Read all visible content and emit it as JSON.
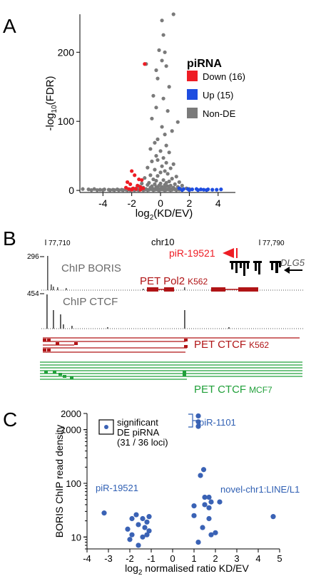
{
  "panels": {
    "A": {
      "letter": "A"
    },
    "B": {
      "letter": "B"
    },
    "C": {
      "letter": "C"
    }
  },
  "chart_data": [
    {
      "type": "scatter",
      "panel": "A",
      "title": "",
      "xlabel_main": "log",
      "xlabel_sub": "2",
      "xlabel_rest": "(KD/EV)",
      "ylabel_prefix": "-log",
      "ylabel_sub": "10",
      "ylabel_rest": "(FDR)",
      "xlim": [
        -5.6,
        5.2
      ],
      "ylim": [
        -3,
        255
      ],
      "xticks": [
        -4,
        -2,
        0,
        2,
        4
      ],
      "yticks": [
        0,
        100,
        200
      ],
      "legend": {
        "title": "piRNA",
        "placement": "top-right",
        "entries": [
          {
            "label": "Down (16)",
            "color": "#ee1c24"
          },
          {
            "label": "Up (15)",
            "color": "#1e4de0"
          },
          {
            "label": "Non-DE",
            "color": "#7a7a7a"
          }
        ]
      },
      "series": [
        {
          "color": "#7a7a7a",
          "points": [
            [
              0.9,
              255
            ],
            [
              0.1,
              246
            ],
            [
              0.2,
              225
            ],
            [
              -0.1,
              203
            ],
            [
              0.3,
              200
            ],
            [
              0.1,
              188
            ],
            [
              -1.0,
              183
            ],
            [
              0.4,
              180
            ],
            [
              -0.3,
              174
            ],
            [
              -0.2,
              162
            ],
            [
              0.6,
              150
            ],
            [
              -0.5,
              137
            ],
            [
              0.2,
              133
            ],
            [
              -0.3,
              120
            ],
            [
              0.5,
              115
            ],
            [
              -0.6,
              104
            ],
            [
              1.2,
              99
            ],
            [
              0.1,
              92
            ],
            [
              0.8,
              86
            ],
            [
              0.3,
              81
            ],
            [
              -0.2,
              74
            ],
            [
              -0.4,
              69
            ],
            [
              0.4,
              65
            ],
            [
              -0.7,
              60
            ],
            [
              0.0,
              57
            ],
            [
              0.6,
              55
            ],
            [
              -0.3,
              50
            ],
            [
              0.2,
              47
            ],
            [
              -0.2,
              44
            ],
            [
              -0.6,
              42
            ],
            [
              0.4,
              40
            ],
            [
              0.9,
              38
            ],
            [
              0.1,
              35
            ],
            [
              -0.9,
              33
            ],
            [
              0.7,
              32
            ],
            [
              -0.4,
              30
            ],
            [
              0.3,
              28
            ],
            [
              0.0,
              26
            ],
            [
              0.5,
              24
            ],
            [
              -0.7,
              22
            ],
            [
              -0.2,
              21
            ],
            [
              1.1,
              20
            ],
            [
              -1.1,
              18
            ],
            [
              0.8,
              17
            ],
            [
              -0.5,
              16
            ],
            [
              0.2,
              15
            ],
            [
              -0.3,
              14
            ],
            [
              0.6,
              13
            ],
            [
              1.3,
              12
            ],
            [
              -0.8,
              11
            ],
            [
              0.4,
              11
            ],
            [
              0.0,
              10
            ],
            [
              -1.3,
              10
            ],
            [
              1.0,
              9
            ],
            [
              -0.4,
              9
            ],
            [
              0.3,
              8
            ],
            [
              -0.9,
              8
            ],
            [
              0.7,
              7
            ],
            [
              1.5,
              7
            ],
            [
              -0.1,
              7
            ],
            [
              -0.6,
              6
            ],
            [
              0.5,
              6
            ],
            [
              -1.5,
              6
            ],
            [
              1.2,
              5
            ],
            [
              0.1,
              5
            ],
            [
              -0.3,
              5
            ],
            [
              0.9,
              4
            ],
            [
              -1.2,
              4
            ],
            [
              -0.7,
              4
            ],
            [
              0.3,
              4
            ],
            [
              1.8,
              3
            ],
            [
              -1.7,
              3
            ],
            [
              0.6,
              3
            ],
            [
              -0.2,
              3
            ],
            [
              1.4,
              2
            ],
            [
              -1.0,
              2
            ],
            [
              0.0,
              2
            ],
            [
              2.0,
              2
            ],
            [
              -2.0,
              2
            ],
            [
              0.8,
              2
            ],
            [
              -0.5,
              2
            ],
            [
              -5.4,
              2
            ],
            [
              -5.0,
              1.5
            ],
            [
              -4.6,
              2
            ],
            [
              -4.2,
              1
            ],
            [
              -3.9,
              1.5
            ],
            [
              -3.6,
              1
            ],
            [
              -3.3,
              1
            ],
            [
              -3.0,
              1.5
            ],
            [
              -2.7,
              1
            ],
            [
              -2.4,
              1
            ],
            [
              -2.2,
              1.5
            ],
            [
              -1.9,
              1
            ],
            [
              -1.6,
              1
            ],
            [
              -1.4,
              1.5
            ],
            [
              -1.1,
              1
            ],
            [
              -0.8,
              1
            ],
            [
              -0.6,
              1.5
            ],
            [
              -0.4,
              1
            ],
            [
              -0.2,
              1
            ],
            [
              0.0,
              1
            ],
            [
              0.2,
              1
            ],
            [
              0.4,
              1
            ],
            [
              0.6,
              1
            ],
            [
              0.8,
              1
            ],
            [
              1.0,
              1.5
            ],
            [
              1.3,
              1
            ],
            [
              -4.8,
              0.5
            ],
            [
              -4.4,
              0.5
            ],
            [
              -4.0,
              0.5
            ],
            [
              -3.5,
              0.5
            ],
            [
              -3.2,
              0.5
            ],
            [
              -2.9,
              0.5
            ],
            [
              -2.6,
              0.5
            ],
            [
              -2.3,
              0.5
            ],
            [
              -2.1,
              0.5
            ],
            [
              -1.8,
              0.5
            ],
            [
              -1.5,
              0.5
            ],
            [
              -1.2,
              0.5
            ],
            [
              -0.9,
              0.5
            ],
            [
              -0.5,
              0.5
            ],
            [
              -0.1,
              0.5
            ],
            [
              0.3,
              0.5
            ],
            [
              0.7,
              0.5
            ],
            [
              1.1,
              0.5
            ]
          ]
        },
        {
          "name": "Down (16)",
          "color": "#ee1c24",
          "points": [
            [
              -1.1,
              183
            ],
            [
              -2.0,
              28
            ],
            [
              -1.8,
              22
            ],
            [
              -1.5,
              16
            ],
            [
              -1.3,
              15
            ],
            [
              -2.3,
              12
            ],
            [
              -2.1,
              9
            ],
            [
              -1.6,
              7
            ],
            [
              -1.4,
              5
            ],
            [
              -2.4,
              4
            ],
            [
              -1.9,
              3
            ],
            [
              -1.2,
              3
            ],
            [
              -2.2,
              2
            ],
            [
              -1.7,
              2
            ],
            [
              -1.4,
              1
            ],
            [
              -2.0,
              1
            ]
          ]
        },
        {
          "name": "Up (15)",
          "color": "#1e4de0",
          "points": [
            [
              1.3,
              3
            ],
            [
              1.6,
              2
            ],
            [
              1.9,
              2
            ],
            [
              2.2,
              1.5
            ],
            [
              2.5,
              2
            ],
            [
              2.8,
              1.5
            ],
            [
              3.0,
              1
            ],
            [
              3.3,
              1.5
            ],
            [
              3.6,
              1
            ],
            [
              3.9,
              1
            ],
            [
              4.2,
              1.5
            ],
            [
              1.5,
              0.5
            ],
            [
              2.0,
              0.5
            ],
            [
              2.6,
              0.5
            ],
            [
              3.2,
              0.5
            ]
          ]
        }
      ]
    },
    {
      "type": "scatter",
      "panel": "C",
      "title": "",
      "xlabel_prefix": "log",
      "xlabel_sub": "2",
      "xlabel_rest": " normalised ratio KD/EV",
      "ylabel": "BORIS ChIP read density",
      "yscale": "log",
      "xlim": [
        -4,
        5
      ],
      "ylim": [
        6,
        2000
      ],
      "xticks": [
        -4,
        -3,
        -2,
        -1,
        0,
        1,
        2,
        3,
        4,
        5
      ],
      "yticks": [
        10,
        100,
        1000,
        2000
      ],
      "legend_text": [
        "significant",
        "DE piRNA",
        "(31 / 36 loci)"
      ],
      "annotations": [
        {
          "text": "piR-1101",
          "color": "#2f5fb3"
        },
        {
          "text": "piR-19521",
          "color": "#2f5fb3"
        },
        {
          "text": "novel-chr1:LINE/L1",
          "color": "#2f5fb3"
        }
      ],
      "series": [
        {
          "color": "#3a62b5",
          "points": [
            [
              -3.2,
              28
            ],
            [
              -1.9,
              22
            ],
            [
              -1.7,
              26
            ],
            [
              -1.4,
              22
            ],
            [
              -1.2,
              19
            ],
            [
              -1.1,
              24
            ],
            [
              -1.3,
              15
            ],
            [
              -1.6,
              17
            ],
            [
              -1.1,
              13
            ],
            [
              -1.9,
              11
            ],
            [
              -1.4,
              10
            ],
            [
              -2.0,
              9
            ],
            [
              -1.6,
              7
            ],
            [
              -1.2,
              11
            ],
            [
              -2.1,
              14
            ],
            [
              1.2,
              1800
            ],
            [
              1.2,
              1400
            ],
            [
              1.2,
              1150
            ],
            [
              1.45,
              180
            ],
            [
              1.3,
              140
            ],
            [
              1.5,
              55
            ],
            [
              1.7,
              55
            ],
            [
              1.5,
              40
            ],
            [
              1.8,
              45
            ],
            [
              2.2,
              45
            ],
            [
              1.0,
              38
            ],
            [
              1.7,
              35
            ],
            [
              1.0,
              25
            ],
            [
              1.7,
              22
            ],
            [
              1.4,
              15
            ],
            [
              1.2,
              8
            ],
            [
              1.8,
              11
            ],
            [
              2.0,
              12
            ],
            [
              4.7,
              24
            ]
          ]
        }
      ]
    }
  ],
  "genome_browser": {
    "chrom": "chr10",
    "coord_left": "77,710",
    "coord_right": "77,790",
    "pirna_label": "piR-19521",
    "gene_label": "DLG5",
    "track_boris_label": "ChIP BORIS",
    "track_boris_max": "296",
    "track_ctcf_label": "ChIP CTCF",
    "track_ctcf_max": "454",
    "pet_pol2_label": "PET Pol2",
    "pet_pol2_cell": "K562",
    "pet_ctcf_k562_label": "PET CTCF",
    "pet_ctcf_k562_cell": "K562",
    "pet_ctcf_mcf7_label": "PET CTCF",
    "pet_ctcf_mcf7_cell": "MCF7",
    "colors": {
      "red": "#b01416",
      "green": "#21a03a",
      "pirna": "#ee1c24"
    }
  }
}
